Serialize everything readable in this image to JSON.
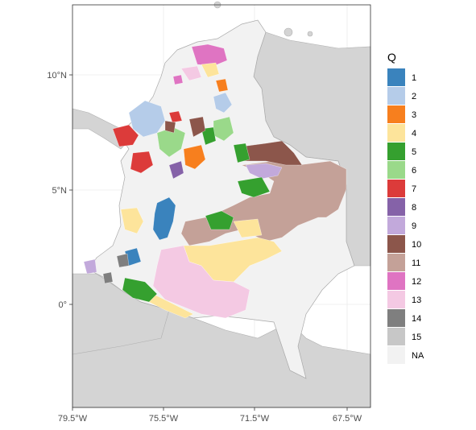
{
  "map": {
    "lat_ticks": [
      "10°N",
      "5°N",
      "0°"
    ],
    "lon_ticks": [
      "79.5°W",
      "75.5°W",
      "71.5°W",
      "67.5°W"
    ]
  },
  "legend": {
    "title": "Q",
    "items": [
      {
        "label": "1",
        "color": "#3a83bd"
      },
      {
        "label": "2",
        "color": "#b5cce9"
      },
      {
        "label": "3",
        "color": "#f77f1e"
      },
      {
        "label": "4",
        "color": "#fde49b"
      },
      {
        "label": "5",
        "color": "#35a02f"
      },
      {
        "label": "6",
        "color": "#9ad98a"
      },
      {
        "label": "7",
        "color": "#dc3b3a"
      },
      {
        "label": "8",
        "color": "#8562a8"
      },
      {
        "label": "9",
        "color": "#c2a9db"
      },
      {
        "label": "10",
        "color": "#8c564b"
      },
      {
        "label": "11",
        "color": "#c4a198"
      },
      {
        "label": "12",
        "color": "#df74c2"
      },
      {
        "label": "13",
        "color": "#f4c9e3"
      },
      {
        "label": "14",
        "color": "#7f7f7f"
      },
      {
        "label": "15",
        "color": "#c7c7c7"
      },
      {
        "label": "NA",
        "color": "#f2f2f2"
      }
    ]
  },
  "colors": {
    "panel_background": "#dadada",
    "neighbor_land": "#d4d4d4",
    "sea": "#ffffff",
    "grid": "#ebebeb"
  }
}
